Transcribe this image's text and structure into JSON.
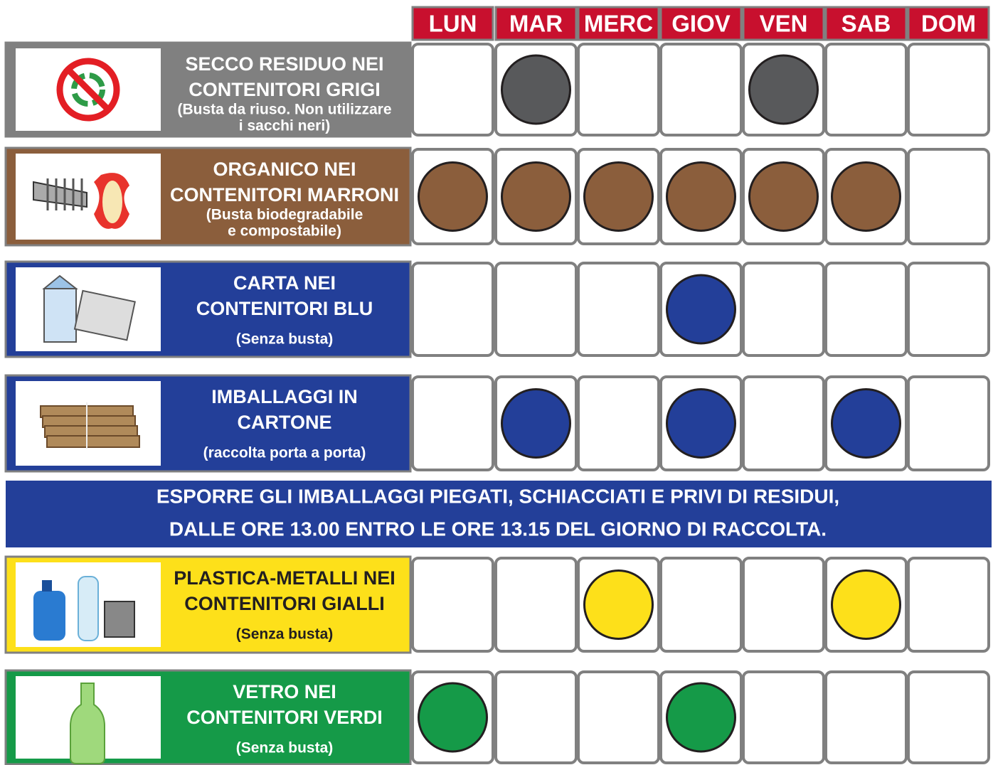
{
  "days": [
    "LUN",
    "MAR",
    "MERC",
    "GIOV",
    "VEN",
    "SAB",
    "DOM"
  ],
  "rows": [
    {
      "title": [
        "SECCO RESIDUO NEI",
        "CONTENITORI GRIGI"
      ],
      "note": [
        "(Busta da riuso. Non utilizzare",
        "i sacchi neri)"
      ],
      "color": "#808080",
      "text_color": "#ffffff",
      "dot_color": "#58595b",
      "schedule": [
        0,
        1,
        0,
        0,
        1,
        0,
        0
      ]
    },
    {
      "title": [
        "ORGANICO NEI",
        "CONTENITORI MARRONI"
      ],
      "note": [
        "(Busta biodegradabile",
        "e compostabile)"
      ],
      "color": "#8b5e3c",
      "text_color": "#ffffff",
      "dot_color": "#8b5e3c",
      "schedule": [
        1,
        1,
        1,
        1,
        1,
        1,
        0
      ]
    },
    {
      "title": [
        "CARTA NEI",
        "CONTENITORI BLU"
      ],
      "note": [
        "(Senza busta)"
      ],
      "color": "#233f99",
      "text_color": "#ffffff",
      "dot_color": "#233f99",
      "schedule": [
        0,
        0,
        0,
        1,
        0,
        0,
        0
      ]
    },
    {
      "title": [
        "IMBALLAGGI IN",
        "CARTONE"
      ],
      "note": [
        "(raccolta porta a porta)"
      ],
      "color": "#233f99",
      "text_color": "#ffffff",
      "dot_color": "#233f99",
      "schedule": [
        0,
        1,
        0,
        1,
        0,
        1,
        0
      ]
    },
    {
      "title": [
        "PLASTICA-METALLI NEI",
        "CONTENITORI GIALLI"
      ],
      "note": [
        "(Senza busta)"
      ],
      "color": "#fde01a",
      "text_color": "#231f20",
      "dot_color": "#fde01a",
      "schedule": [
        0,
        0,
        1,
        0,
        0,
        1,
        0
      ]
    },
    {
      "title": [
        "VETRO NEI",
        "CONTENITORI VERDI"
      ],
      "note": [
        "(Senza busta)"
      ],
      "color": "#159a48",
      "text_color": "#ffffff",
      "dot_color": "#159a48",
      "schedule": [
        1,
        0,
        0,
        1,
        0,
        0,
        0
      ]
    }
  ],
  "notice": [
    "ESPORRE GLI IMBALLAGGI PIEGATI, SCHIACCIATI E PRIVI DI RESIDUI,",
    "DALLE ORE 13.00 ENTRO LE ORE 13.15 DEL GIORNO DI RACCOLTA."
  ]
}
